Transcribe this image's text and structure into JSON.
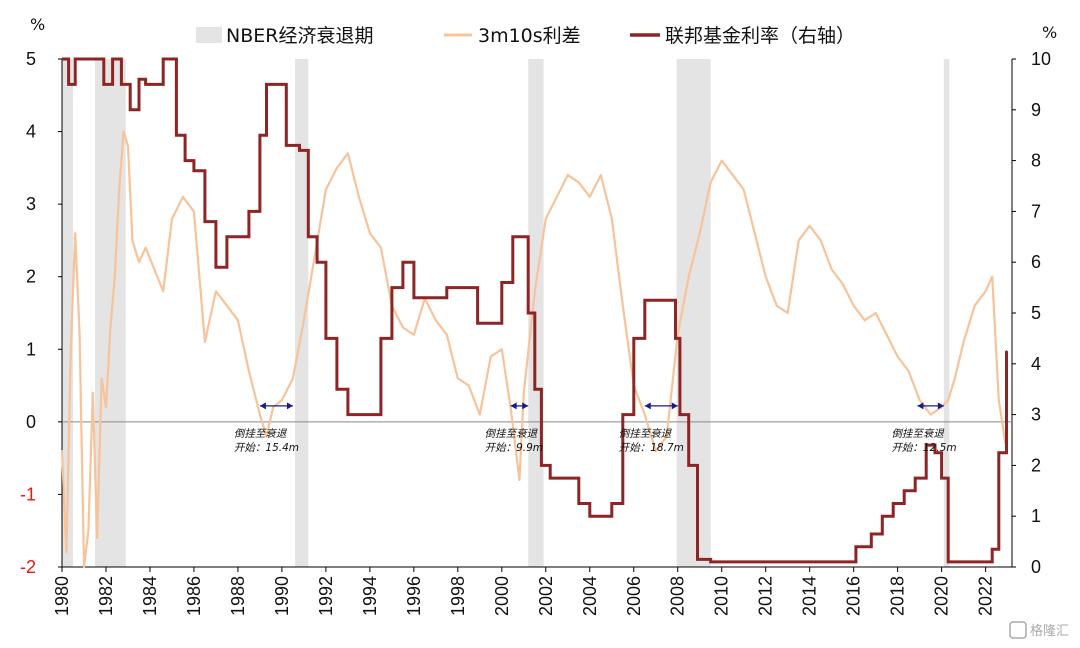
{
  "chart_data": {
    "type": "line",
    "title": "",
    "y_left": {
      "unit": "%",
      "ylim": [
        -2,
        5
      ],
      "ticks": [
        "5",
        "4",
        "3",
        "2",
        "1",
        "0",
        "-1",
        "-2"
      ]
    },
    "y_right": {
      "unit": "%",
      "ylim": [
        0,
        10
      ],
      "ticks": [
        "10",
        "9",
        "8",
        "7",
        "6",
        "5",
        "4",
        "3",
        "2",
        "1",
        "0"
      ]
    },
    "x_ticks": [
      "1980",
      "1982",
      "1984",
      "1986",
      "1988",
      "1990",
      "1992",
      "1994",
      "1996",
      "1998",
      "2000",
      "2002",
      "2004",
      "2006",
      "2008",
      "2010",
      "2012",
      "2014",
      "2016",
      "2018",
      "2020",
      "2022"
    ],
    "legend": {
      "recession": "NBER经济衰退期",
      "spread": "3m10s利差",
      "fedfunds": "联邦基金利率（右轴）"
    },
    "colors": {
      "recession": "#e4e4e4",
      "spread": "#f6c39a",
      "fedfunds": "#8e2424",
      "negative_tick": "#e8180c"
    },
    "recessions": [
      [
        1980.0,
        1980.5
      ],
      [
        1981.5,
        1982.9
      ],
      [
        1990.6,
        1991.2
      ],
      [
        2001.2,
        2001.9
      ],
      [
        2007.95,
        2009.5
      ],
      [
        2020.1,
        2020.35
      ]
    ],
    "series": [
      {
        "name": "3m10s利差",
        "axis": "left",
        "x": [
          1980.0,
          1980.2,
          1980.4,
          1980.6,
          1980.8,
          1981.0,
          1981.2,
          1981.4,
          1981.6,
          1981.8,
          1982.0,
          1982.2,
          1982.4,
          1982.6,
          1982.8,
          1983.0,
          1983.2,
          1983.5,
          1983.8,
          1984.2,
          1984.6,
          1985.0,
          1985.5,
          1986.0,
          1986.5,
          1987.0,
          1987.5,
          1988.0,
          1988.5,
          1989.0,
          1989.3,
          1989.6,
          1990.0,
          1990.5,
          1991.0,
          1991.5,
          1992.0,
          1992.5,
          1993.0,
          1993.5,
          1994.0,
          1994.5,
          1995.0,
          1995.5,
          1996.0,
          1996.5,
          1997.0,
          1997.5,
          1998.0,
          1998.5,
          1999.0,
          1999.5,
          2000.0,
          2000.4,
          2000.8,
          2001.0,
          2001.5,
          2002.0,
          2002.5,
          2003.0,
          2003.5,
          2004.0,
          2004.5,
          2005.0,
          2005.5,
          2006.0,
          2006.5,
          2007.0,
          2007.5,
          2008.0,
          2008.5,
          2009.0,
          2009.5,
          2010.0,
          2010.5,
          2011.0,
          2011.5,
          2012.0,
          2012.5,
          2013.0,
          2013.5,
          2014.0,
          2014.5,
          2015.0,
          2015.5,
          2016.0,
          2016.5,
          2017.0,
          2017.5,
          2018.0,
          2018.5,
          2019.0,
          2019.5,
          2020.0,
          2020.3,
          2020.6,
          2021.0,
          2021.5,
          2022.0,
          2022.3,
          2022.6,
          2022.9
        ],
        "y": [
          -0.4,
          -1.8,
          1.0,
          2.6,
          1.2,
          -2.0,
          -1.5,
          0.4,
          -1.6,
          0.6,
          0.2,
          1.3,
          2.0,
          3.2,
          4.0,
          3.8,
          2.5,
          2.2,
          2.4,
          2.1,
          1.8,
          2.8,
          3.1,
          2.9,
          1.1,
          1.8,
          1.6,
          1.4,
          0.7,
          0.1,
          -0.2,
          0.2,
          0.3,
          0.6,
          1.4,
          2.3,
          3.2,
          3.5,
          3.7,
          3.1,
          2.6,
          2.4,
          1.6,
          1.3,
          1.2,
          1.7,
          1.4,
          1.2,
          0.6,
          0.5,
          0.1,
          0.9,
          1.0,
          0.2,
          -0.8,
          0.4,
          1.8,
          2.8,
          3.1,
          3.4,
          3.3,
          3.1,
          3.4,
          2.8,
          1.6,
          0.5,
          0.1,
          -0.4,
          -0.2,
          1.2,
          2.0,
          2.6,
          3.3,
          3.6,
          3.4,
          3.2,
          2.6,
          2.0,
          1.6,
          1.5,
          2.5,
          2.7,
          2.5,
          2.1,
          1.9,
          1.6,
          1.4,
          1.5,
          1.2,
          0.9,
          0.7,
          0.3,
          0.1,
          0.2,
          0.3,
          0.6,
          1.1,
          1.6,
          1.8,
          2.0,
          0.3,
          -0.3
        ]
      },
      {
        "name": "联邦基金利率（右轴）",
        "axis": "right",
        "x": [
          1980.0,
          1980.3,
          1980.6,
          1980.9,
          1981.2,
          1981.5,
          1981.9,
          1982.3,
          1982.7,
          1983.1,
          1983.5,
          1983.8,
          1984.2,
          1984.6,
          1984.8,
          1985.2,
          1985.6,
          1986.0,
          1986.5,
          1987.0,
          1987.5,
          1988.0,
          1988.5,
          1989.0,
          1989.3,
          1989.7,
          1990.2,
          1990.8,
          1991.2,
          1991.6,
          1992.0,
          1992.5,
          1993.0,
          1993.5,
          1994.0,
          1994.5,
          1995.0,
          1995.5,
          1996.0,
          1996.5,
          1997.0,
          1997.5,
          1998.0,
          1998.5,
          1998.9,
          1999.5,
          2000.0,
          2000.5,
          2000.9,
          2001.2,
          2001.5,
          2001.8,
          2002.2,
          2002.9,
          2003.5,
          2004.0,
          2004.5,
          2005.0,
          2005.5,
          2006.0,
          2006.5,
          2007.0,
          2007.6,
          2007.9,
          2008.1,
          2008.5,
          2008.9,
          2009.5,
          2011,
          2013,
          2015.8,
          2016.1,
          2016.8,
          2017.3,
          2017.8,
          2018.3,
          2018.8,
          2019.3,
          2019.7,
          2020.0,
          2020.3,
          2021.0,
          2021.5,
          2022.0,
          2022.3,
          2022.6,
          2022.95
        ],
        "y": [
          10.0,
          9.5,
          10.0,
          10.0,
          10.0,
          10.0,
          9.5,
          10.0,
          9.5,
          9.0,
          9.6,
          9.5,
          9.5,
          10.0,
          10.0,
          8.5,
          8.0,
          7.8,
          6.8,
          5.9,
          6.5,
          6.5,
          7.0,
          8.5,
          9.5,
          9.5,
          8.3,
          8.2,
          6.5,
          6.0,
          4.5,
          3.5,
          3.0,
          3.0,
          3.0,
          4.5,
          5.5,
          6.0,
          5.3,
          5.3,
          5.3,
          5.5,
          5.5,
          5.5,
          4.8,
          4.8,
          5.6,
          6.5,
          6.5,
          5.0,
          3.5,
          2.0,
          1.75,
          1.75,
          1.25,
          1.0,
          1.0,
          1.25,
          3.0,
          4.5,
          5.25,
          5.25,
          5.25,
          4.5,
          3.0,
          2.0,
          0.15,
          0.1,
          0.1,
          0.1,
          0.1,
          0.4,
          0.65,
          1.0,
          1.25,
          1.5,
          1.75,
          2.4,
          2.25,
          1.75,
          0.1,
          0.1,
          0.1,
          0.1,
          0.35,
          2.25,
          4.25
        ]
      }
    ],
    "annotations": [
      {
        "line1": "倒挂至衰退",
        "line2": "开始：15.4m",
        "from": 1989.0,
        "to": 1990.5
      },
      {
        "line1": "倒挂至衰退",
        "line2": "开始：9.9m",
        "from": 2000.4,
        "to": 2001.2
      },
      {
        "line1": "倒挂至衰退",
        "line2": "开始：18.7m",
        "from": 2006.5,
        "to": 2008.0
      },
      {
        "line1": "倒挂至衰退",
        "line2": "开始：12.5m",
        "from": 2018.9,
        "to": 2020.1
      }
    ]
  },
  "watermark": "格隆汇"
}
